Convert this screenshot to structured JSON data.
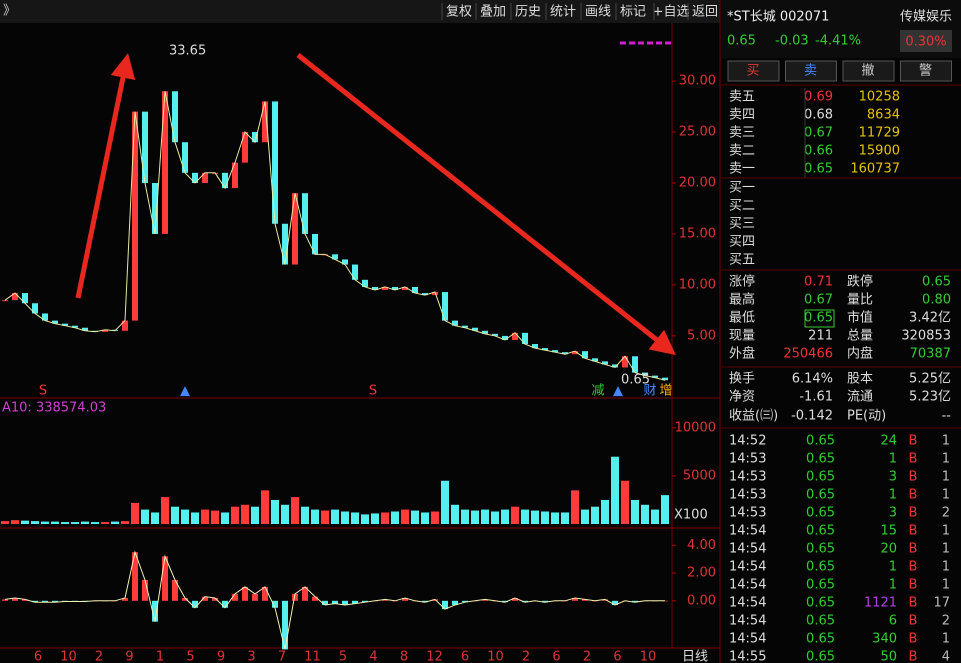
{
  "toolbar": {
    "back_icon": "》",
    "buttons": [
      "复权",
      "叠加",
      "历史",
      "统计",
      "画线",
      "标记",
      "+自选",
      "返回"
    ]
  },
  "price_chart": {
    "ylim": [
      -0.8,
      35.5
    ],
    "yticks": [
      {
        "value": 5,
        "label": "5.00"
      },
      {
        "value": 10,
        "label": "10.00"
      },
      {
        "value": 15,
        "label": "15.00"
      },
      {
        "value": 20,
        "label": "20.00"
      },
      {
        "value": 25,
        "label": "25.00"
      },
      {
        "value": 30,
        "label": "30.00"
      }
    ],
    "closes": [
      8.5,
      9.2,
      8.2,
      7.2,
      6.5,
      6.2,
      6.0,
      5.8,
      5.5,
      5.4,
      5.6,
      5.5,
      6.5,
      27,
      20,
      15,
      29,
      24,
      21,
      20,
      21,
      21,
      19.5,
      22,
      25,
      24,
      28,
      16,
      12,
      19,
      15,
      13,
      13,
      12.5,
      12,
      10.5,
      9.8,
      9.5,
      9.8,
      9.5,
      9.8,
      9.2,
      9.0,
      9.3,
      6.5,
      6.0,
      5.8,
      5.5,
      5.2,
      5.0,
      4.6,
      5.3,
      4.2,
      3.8,
      3.6,
      3.4,
      3.2,
      3.5,
      2.8,
      2.5,
      2.2,
      1.9,
      3.0,
      1.4,
      1.1,
      0.9,
      0.65
    ],
    "high_label": "33.65",
    "low_label": "0.65",
    "markers": [
      "S",
      "▲",
      "S",
      "减",
      "▲",
      "财",
      "增"
    ]
  },
  "volume_chart": {
    "indicator_label": "A10: 338574.03",
    "unit": "X100",
    "ylim": [
      0,
      12900
    ],
    "yticks": [
      5000,
      10000
    ],
    "values": [
      300,
      400,
      350,
      300,
      250,
      250,
      200,
      200,
      250,
      200,
      200,
      250,
      300,
      2200,
      1500,
      1200,
      2800,
      1800,
      1500,
      1200,
      1500,
      1400,
      1200,
      1800,
      2000,
      1800,
      3500,
      2500,
      2000,
      2800,
      1800,
      1500,
      1400,
      1500,
      1300,
      1200,
      1000,
      1100,
      1200,
      1300,
      1500,
      1400,
      1200,
      1300,
      4500,
      2000,
      1500,
      1400,
      1500,
      1300,
      1500,
      1800,
      1500,
      1400,
      1300,
      1200,
      1200,
      3500,
      1500,
      1800,
      2500,
      7000,
      4500,
      2500,
      2000,
      1500,
      3000
    ]
  },
  "macd_chart": {
    "ylim": [
      -3.4,
      5.1
    ],
    "yticks": [
      {
        "value": 0,
        "label": "0.00"
      },
      {
        "value": 2,
        "label": "2.00"
      },
      {
        "value": 4,
        "label": "4.00"
      }
    ],
    "values": [
      0.1,
      0.2,
      0.1,
      -0.1,
      -0.1,
      -0.1,
      -0.05,
      -0.05,
      -0.05,
      0,
      0,
      0,
      0.2,
      3.5,
      1.5,
      -1.5,
      3.2,
      1.5,
      0.2,
      -0.5,
      0.3,
      0.2,
      -0.5,
      0.5,
      1,
      0.5,
      1,
      -0.5,
      -3.5,
      0.5,
      1.0,
      0.3,
      -0.3,
      -0.2,
      -0.3,
      -0.2,
      -0.1,
      0,
      0.1,
      0,
      0.2,
      0,
      -0.1,
      0.1,
      -0.6,
      -0.3,
      -0.1,
      0,
      0.1,
      0,
      -0.1,
      0.2,
      -0.1,
      0,
      -0.1,
      0,
      0,
      0.2,
      0.1,
      0,
      0.1,
      -0.3,
      0,
      -0.1,
      0,
      0,
      0
    ]
  },
  "x_axis": {
    "labels": [
      "6",
      "10",
      "2",
      "9",
      "1",
      "5",
      "9",
      "3",
      "7",
      "11",
      "5",
      "4",
      "8",
      "12",
      "6",
      "10",
      "2",
      "6",
      "2",
      "6",
      "10"
    ],
    "period": "日线"
  },
  "quote": {
    "name": "*ST长城 002071",
    "sector": "传媒娱乐",
    "sector_change": "0.30%",
    "price": "0.65",
    "change": "-0.03",
    "change_pct": "-4.41%",
    "buttons": [
      "买",
      "卖",
      "撤",
      "警"
    ]
  },
  "order_book": {
    "asks": [
      [
        "卖五",
        "0.69",
        "10258"
      ],
      [
        "卖四",
        "0.68",
        "8634"
      ],
      [
        "卖三",
        "0.67",
        "11729"
      ],
      [
        "卖二",
        "0.66",
        "15900"
      ],
      [
        "卖一",
        "0.65",
        "160737"
      ]
    ],
    "bids": [
      "买一",
      "买二",
      "买三",
      "买四",
      "买五"
    ]
  },
  "stats": [
    [
      "涨停",
      "0.71",
      "跌停",
      "0.65"
    ],
    [
      "最高",
      "0.67",
      "量比",
      "0.80"
    ],
    [
      "最低",
      "0.65",
      "市值",
      "3.42亿"
    ],
    [
      "现量",
      "211",
      "总量",
      "320853"
    ],
    [
      "外盘",
      "250466",
      "内盘",
      "70387"
    ],
    [
      "换手",
      "6.14%",
      "股本",
      "5.25亿"
    ],
    [
      "净资",
      "-1.61",
      "流通",
      "5.23亿"
    ],
    [
      "收益(㈢)",
      "-0.142",
      "PE(动)",
      "--"
    ]
  ],
  "ticks": [
    [
      "14:52",
      "0.65",
      "24",
      "B",
      "1"
    ],
    [
      "14:53",
      "0.65",
      "1",
      "B",
      "1"
    ],
    [
      "14:53",
      "0.65",
      "3",
      "B",
      "1"
    ],
    [
      "14:53",
      "0.65",
      "1",
      "B",
      "1"
    ],
    [
      "14:53",
      "0.65",
      "3",
      "B",
      "2"
    ],
    [
      "14:54",
      "0.65",
      "15",
      "B",
      "1"
    ],
    [
      "14:54",
      "0.65",
      "20",
      "B",
      "1"
    ],
    [
      "14:54",
      "0.65",
      "1",
      "B",
      "1"
    ],
    [
      "14:54",
      "0.65",
      "1",
      "B",
      "1"
    ],
    [
      "14:54",
      "0.65",
      "1121",
      "B",
      "17"
    ],
    [
      "14:54",
      "0.65",
      "6",
      "B",
      "2"
    ],
    [
      "14:54",
      "0.65",
      "340",
      "B",
      "1"
    ],
    [
      "14:55",
      "0.65",
      "50",
      "B",
      "4"
    ]
  ]
}
